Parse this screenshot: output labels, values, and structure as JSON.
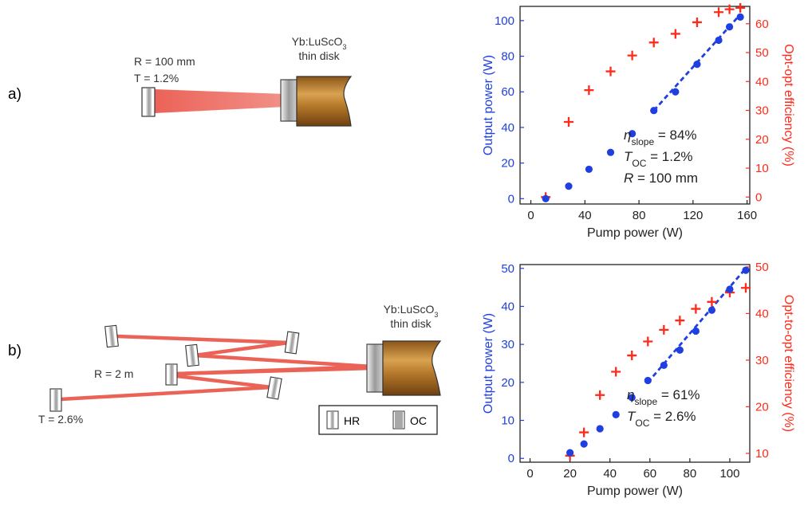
{
  "panel_a": {
    "label": "a)",
    "mirror_label_r": "R = 100 mm",
    "mirror_label_t": "T = 1.2%",
    "disk_label_1": "Yb:LuScO",
    "disk_label_sub": "3",
    "disk_label_2": "thin disk"
  },
  "panel_b": {
    "label": "b)",
    "mirror_label_r": "R = 2 m",
    "mirror_label_t": "T = 2.6%",
    "disk_label_1": "Yb:LuScO",
    "disk_label_sub": "3",
    "disk_label_2": "thin disk",
    "legend_hr": "HR",
    "legend_oc": "OC"
  },
  "colors": {
    "output": "#1f3fe0",
    "efficiency": "#ff2a1a",
    "beam": "#e8473a",
    "disk_brown": "#b5782a"
  },
  "chart_data": [
    {
      "type": "scatter",
      "xlabel": "Pump power (W)",
      "ylabel": "Output power (W)",
      "y2label": "Opt-opt efficiency (%)",
      "xlim": [
        -8,
        162
      ],
      "ylim": [
        -3,
        108
      ],
      "y2lim": [
        -2.4,
        66
      ],
      "xticks": [
        0,
        40,
        80,
        120,
        160
      ],
      "yticks": [
        0,
        20,
        40,
        60,
        80,
        100
      ],
      "y2ticks": [
        0,
        10,
        20,
        30,
        40,
        50,
        60
      ],
      "series": [
        {
          "axis": "left",
          "marker": "circle",
          "x": [
            11,
            28,
            43,
            59,
            75,
            91,
            107,
            123,
            139,
            147,
            155
          ],
          "y": [
            0,
            7,
            16.5,
            26,
            36.5,
            49.5,
            60,
            75.5,
            89,
            96.5,
            102
          ]
        },
        {
          "axis": "right",
          "marker": "plus",
          "x": [
            11,
            28,
            43,
            59,
            75,
            91,
            107,
            123,
            139,
            147,
            155
          ],
          "y": [
            0,
            26,
            37,
            43.5,
            49,
            53.5,
            56.5,
            60.5,
            64,
            65,
            65.5
          ]
        }
      ],
      "fit_line": {
        "x": [
          91,
          155
        ],
        "y": [
          49.5,
          103.5
        ]
      },
      "annotations": [
        {
          "sym": "η",
          "sub": "slope",
          "rest": " = 84%"
        },
        {
          "sym": "T",
          "sub": "OC",
          "rest": " = 1.2%"
        },
        {
          "sym": "R",
          "sub": "",
          "rest": " = 100 mm"
        }
      ]
    },
    {
      "type": "scatter",
      "xlabel": "Pump power (W)",
      "ylabel": "Output power (W)",
      "y2label": "Opt-to-opt efficiency (%)",
      "xlim": [
        -5,
        110
      ],
      "ylim": [
        -1,
        51
      ],
      "y2lim": [
        8.1,
        50.5
      ],
      "xticks": [
        0,
        20,
        40,
        60,
        80,
        100
      ],
      "yticks": [
        0,
        10,
        20,
        30,
        40,
        50
      ],
      "y2ticks": [
        10,
        20,
        30,
        40,
        50
      ],
      "series": [
        {
          "axis": "left",
          "marker": "circle",
          "x": [
            20,
            27,
            35,
            43,
            51,
            59,
            67,
            75,
            83,
            91,
            100,
            108
          ],
          "y": [
            1.5,
            3.8,
            7.8,
            11.5,
            16,
            20.5,
            24.5,
            28.5,
            33.5,
            39,
            44.5,
            49.5
          ]
        },
        {
          "axis": "right",
          "marker": "plus",
          "x": [
            20,
            27,
            35,
            43,
            51,
            59,
            67,
            75,
            83,
            91,
            100,
            108
          ],
          "y": [
            9.5,
            14.5,
            22.5,
            27.5,
            31,
            34,
            36.5,
            38.5,
            41,
            42.5,
            44.5,
            45.5
          ]
        }
      ],
      "fit_line": {
        "x": [
          59,
          108
        ],
        "y": [
          20,
          50
        ]
      },
      "annotations": [
        {
          "sym": "η",
          "sub": "slope",
          "rest": " = 61%"
        },
        {
          "sym": "T",
          "sub": "OC",
          "rest": " = 2.6%"
        }
      ]
    }
  ]
}
